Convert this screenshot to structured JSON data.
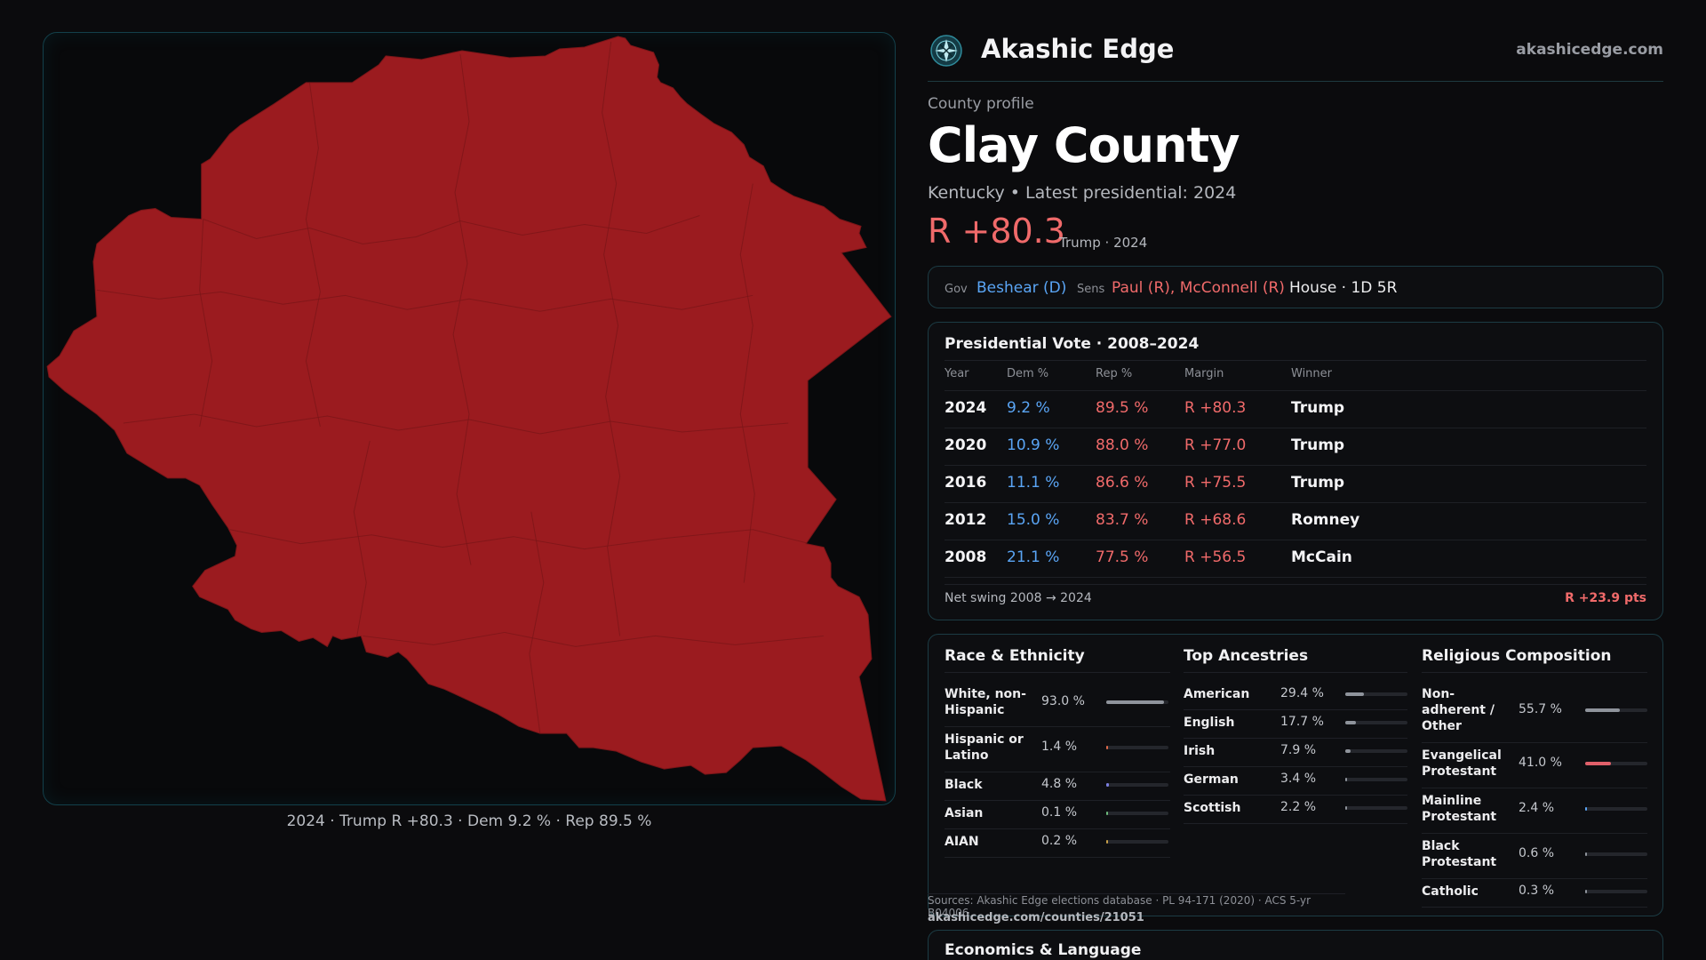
{
  "map": {
    "caption": "2024 · Trump R +80.3 · Dem 9.2 % · Rep 89.5 %",
    "fill_color": "#9b1b1f",
    "border_color": "#7a1518"
  },
  "brand": {
    "name": "Akashic Edge",
    "url": "akashicedge.com",
    "logo_icon": "compass-star-icon"
  },
  "profile": {
    "eyebrow": "County profile",
    "title": "Clay County",
    "subtitle": "Kentucky • Latest presidential: 2024",
    "margin": "R +80.3",
    "margin_note": "Trump · 2024"
  },
  "officials": {
    "gov_label": "Gov",
    "gov_value": "Beshear (D)",
    "sens_label": "Sens",
    "sens_value": "Paul (R), McConnell (R)",
    "house_value": "House · 1D 5R"
  },
  "presidential": {
    "title": "Presidential Vote · 2008–2024",
    "headers": {
      "year": "Year",
      "dem": "Dem %",
      "rep": "Rep %",
      "margin": "Margin",
      "winner": "Winner"
    },
    "rows": [
      {
        "year": "2024",
        "dem": "9.2 %",
        "rep": "89.5 %",
        "margin": "R +80.3",
        "winner": "Trump"
      },
      {
        "year": "2020",
        "dem": "10.9 %",
        "rep": "88.0 %",
        "margin": "R +77.0",
        "winner": "Trump"
      },
      {
        "year": "2016",
        "dem": "11.1 %",
        "rep": "86.6 %",
        "margin": "R +75.5",
        "winner": "Trump"
      },
      {
        "year": "2012",
        "dem": "15.0 %",
        "rep": "83.7 %",
        "margin": "R +68.6",
        "winner": "Romney"
      },
      {
        "year": "2008",
        "dem": "21.1 %",
        "rep": "77.5 %",
        "margin": "R +56.5",
        "winner": "McCain"
      }
    ],
    "net_swing_label": "Net swing 2008 → 2024",
    "net_swing_value": "R +23.9 pts"
  },
  "race": {
    "title": "Race & Ethnicity",
    "items": [
      {
        "label": "White, non-Hispanic",
        "pct": "93.0 %",
        "value": 93.0,
        "color": "#8f949c"
      },
      {
        "label": "Hispanic or Latino",
        "pct": "1.4 %",
        "value": 1.4,
        "color": "#e0694a"
      },
      {
        "label": "Black",
        "pct": "4.8 %",
        "value": 4.8,
        "color": "#7b7fe0"
      },
      {
        "label": "Asian",
        "pct": "0.1 %",
        "value": 0.1,
        "color": "#6dbb7d"
      },
      {
        "label": "AIAN",
        "pct": "0.2 %",
        "value": 0.2,
        "color": "#c9a14a"
      }
    ]
  },
  "ancestry": {
    "title": "Top Ancestries",
    "items": [
      {
        "label": "American",
        "pct": "29.4 %",
        "value": 29.4,
        "color": "#8f949c"
      },
      {
        "label": "English",
        "pct": "17.7 %",
        "value": 17.7,
        "color": "#8f949c"
      },
      {
        "label": "Irish",
        "pct": "7.9 %",
        "value": 7.9,
        "color": "#8f949c"
      },
      {
        "label": "German",
        "pct": "3.4 %",
        "value": 3.4,
        "color": "#8f949c"
      },
      {
        "label": "Scottish",
        "pct": "2.2 %",
        "value": 2.2,
        "color": "#8f949c"
      }
    ]
  },
  "religion": {
    "title": "Religious Composition",
    "items": [
      {
        "label": "Non-adherent / Other",
        "pct": "55.7 %",
        "value": 55.7,
        "color": "#8f949c"
      },
      {
        "label": "Evangelical Protestant",
        "pct": "41.0 %",
        "value": 41.0,
        "color": "#e0606a"
      },
      {
        "label": "Mainline Protestant",
        "pct": "2.4 %",
        "value": 2.4,
        "color": "#5aa5f5"
      },
      {
        "label": "Black Protestant",
        "pct": "0.6 %",
        "value": 0.6,
        "color": "#8f949c"
      },
      {
        "label": "Catholic",
        "pct": "0.3 %",
        "value": 0.3,
        "color": "#8f949c"
      }
    ]
  },
  "sources": {
    "text": "Sources: Akashic Edge elections database · PL 94-171 (2020) · ACS 5-yr B04006",
    "url": "akashicedge.com/counties/21051"
  },
  "economics": {
    "title": "Economics & Language"
  }
}
